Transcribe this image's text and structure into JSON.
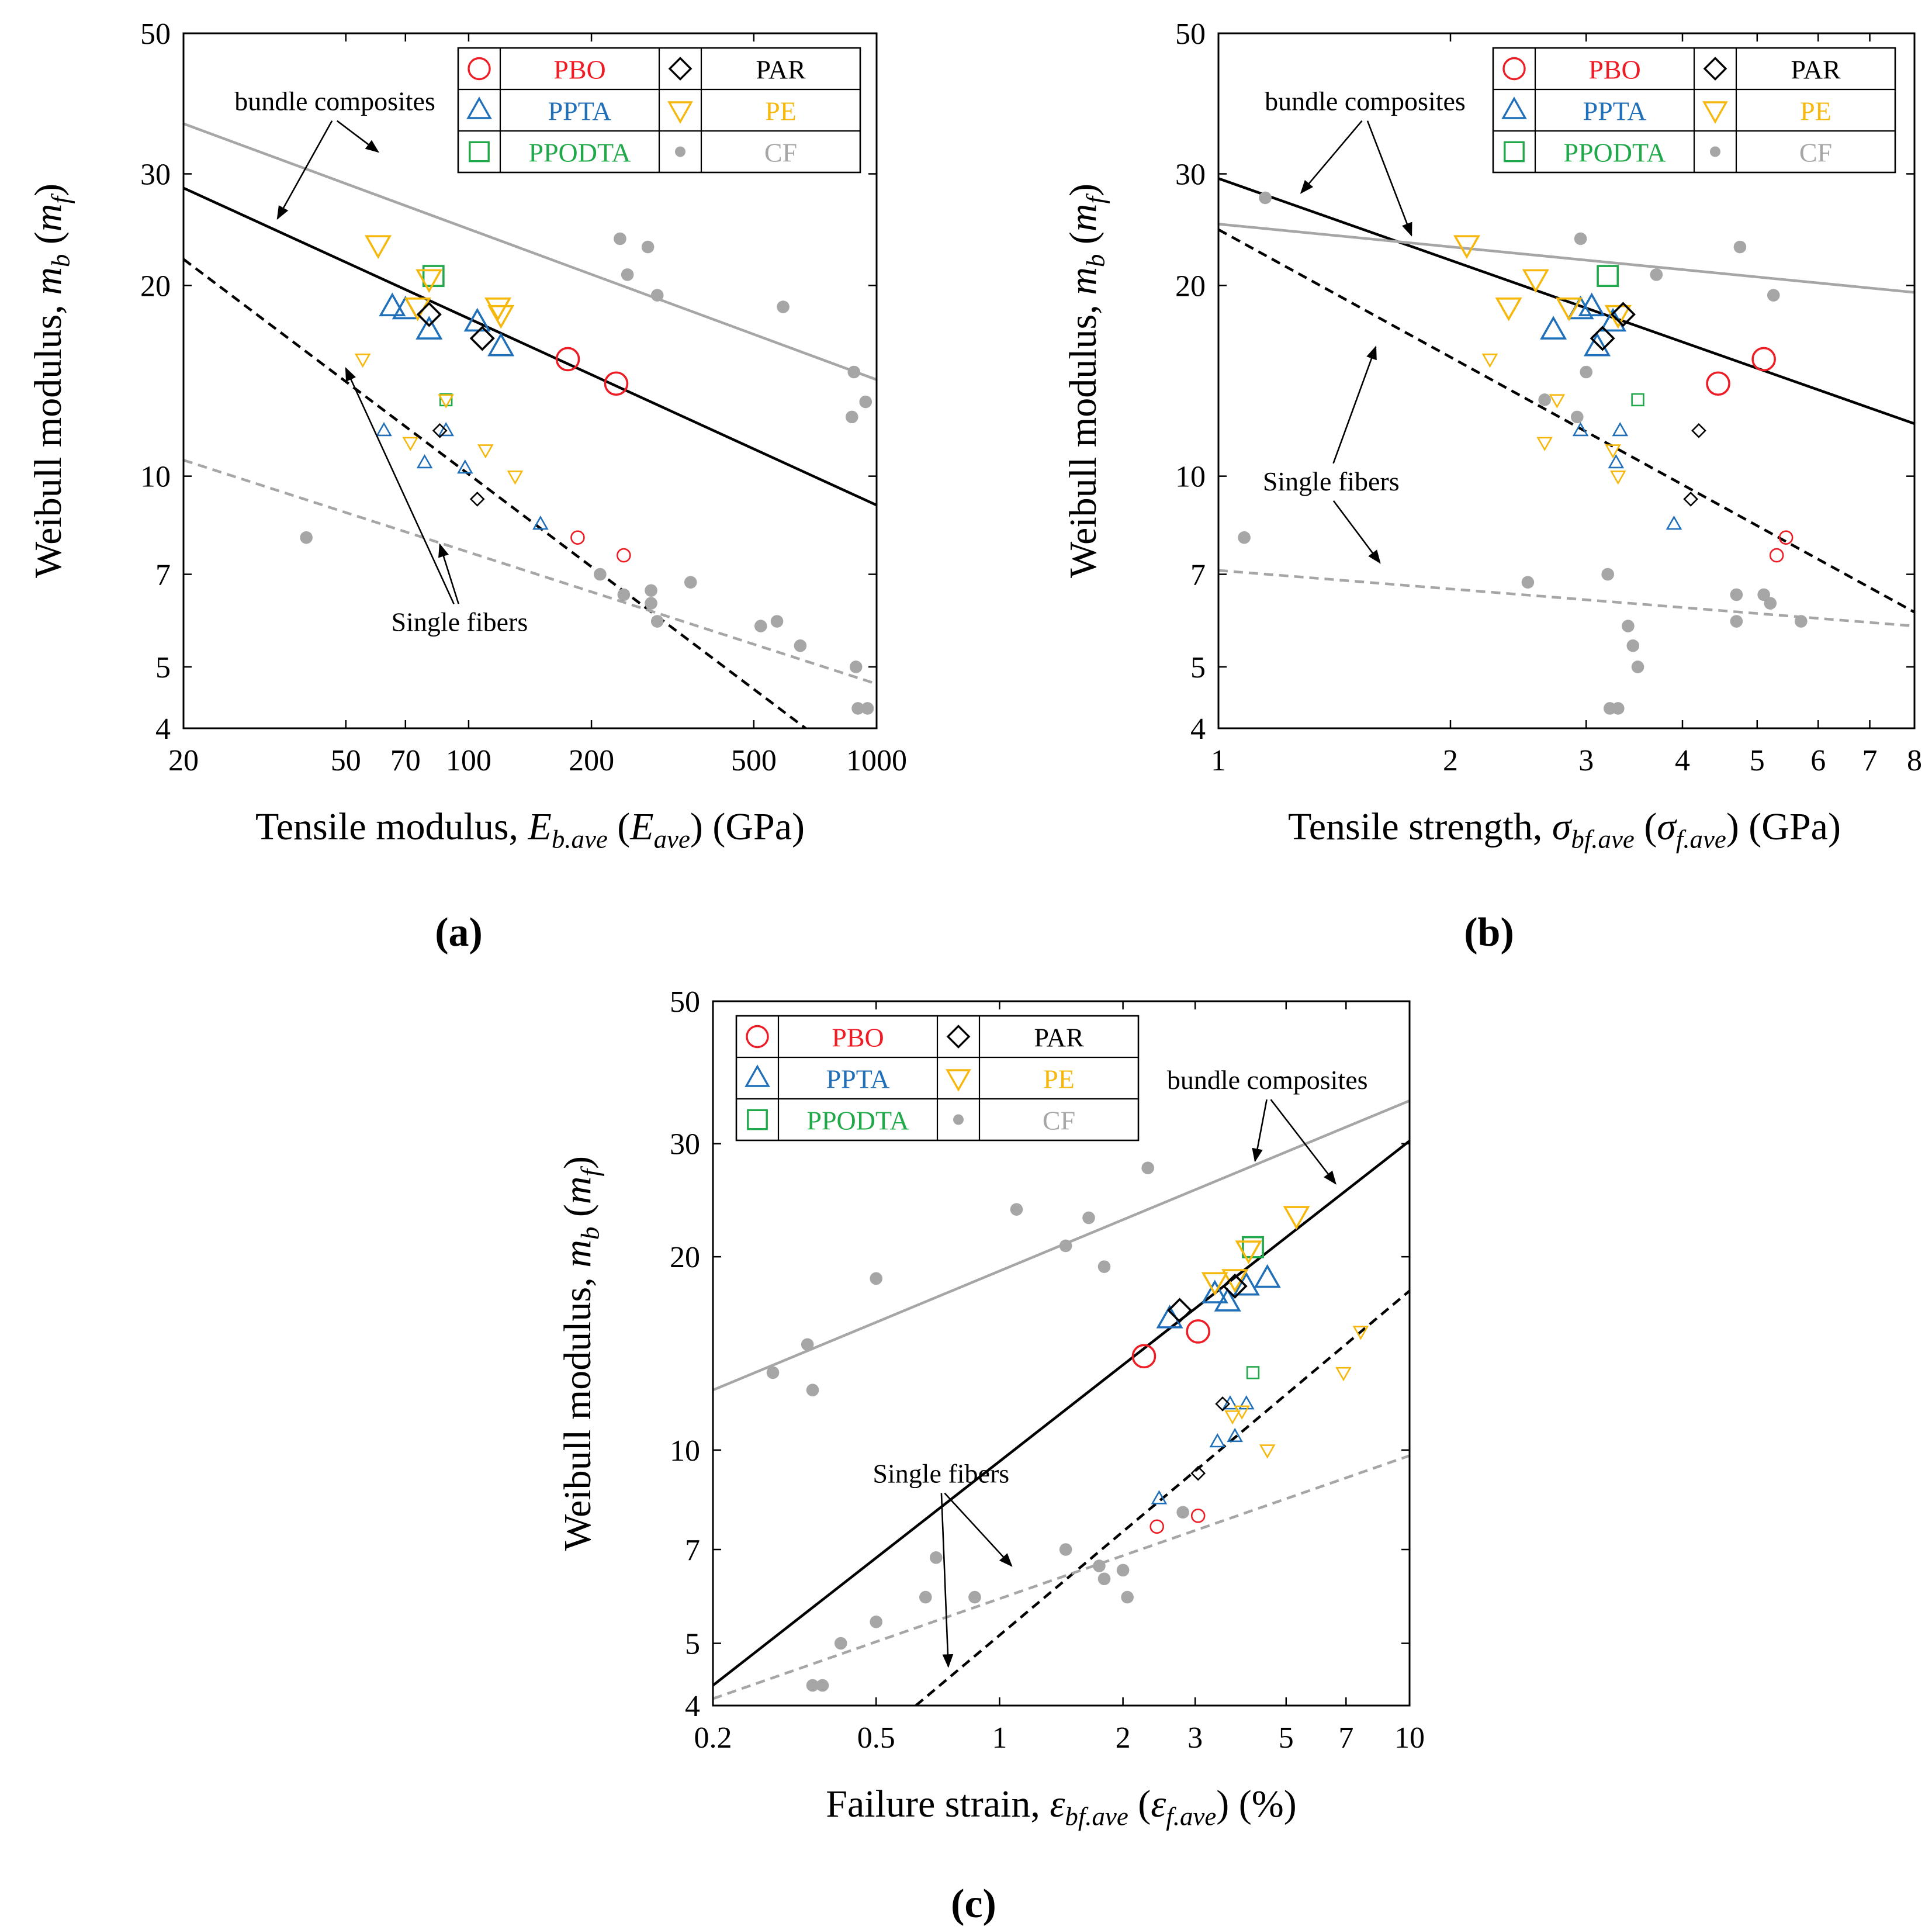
{
  "figure": {
    "panel_labels": [
      "(a)",
      "(b)",
      "(c)"
    ]
  },
  "legend": {
    "entries": [
      {
        "key": "PBO",
        "label": "PBO",
        "color": "#ee1c24",
        "marker": "circle"
      },
      {
        "key": "PAR",
        "label": "PAR",
        "color": "#000000",
        "marker": "diamond"
      },
      {
        "key": "PPTA",
        "label": "PPTA",
        "color": "#1f6fb9",
        "marker": "triangle-up"
      },
      {
        "key": "PE",
        "label": "PE",
        "color": "#f6b80c",
        "marker": "triangle-down"
      },
      {
        "key": "PPODTA",
        "label": "PPODTA",
        "color": "#21a84a",
        "marker": "square"
      },
      {
        "key": "CF",
        "label": "CF",
        "color": "#a6a6a6",
        "marker": "dot"
      }
    ]
  },
  "line_styles": {
    "bundle_fiber": "#000000",
    "bundle_cf": "#a6a6a6",
    "single_fiber": "#000000",
    "single_cf": "#a6a6a6"
  },
  "chart_data": [
    {
      "type": "scatter",
      "panel": "(a)",
      "xscale": "log",
      "yscale": "log",
      "xlim": [
        20,
        1000
      ],
      "ylim": [
        4,
        50
      ],
      "xticks": [
        20,
        50,
        70,
        100,
        200,
        500,
        1000
      ],
      "yticks": [
        4,
        5,
        7,
        10,
        20,
        30,
        50
      ],
      "xlabel": "Tensile modulus, E_b.ave (E_ave) (GPa)",
      "xlabel_parts": {
        "pre": "Tensile modulus, ",
        "v1": "E",
        "s1": "b.ave",
        "mid": " (",
        "v2": "E",
        "s2": "ave",
        "post": ") (GPa)"
      },
      "ylabel_parts": {
        "pre": "Weibull modulus, ",
        "v1": "m",
        "s1": "b",
        "mid": " (",
        "v2": "m",
        "s2": "f",
        "post": ")"
      },
      "bundle_points": {
        "PBO": [
          [
            175,
            15.3
          ],
          [
            230,
            14.0
          ]
        ],
        "PPTA": [
          [
            65,
            18.5
          ],
          [
            70,
            18.3
          ],
          [
            80,
            17.0
          ],
          [
            105,
            17.5
          ],
          [
            120,
            16.0
          ]
        ],
        "PPODTA": [
          [
            82,
            20.7
          ]
        ],
        "PE": [
          [
            60,
            23.2
          ],
          [
            75,
            18.5
          ],
          [
            80,
            20.5
          ],
          [
            118,
            18.5
          ],
          [
            120,
            18.0
          ]
        ],
        "PAR": [
          [
            80,
            18.0
          ],
          [
            108,
            16.5
          ]
        ]
      },
      "single_points": {
        "PBO": [
          [
            185,
            8.0
          ],
          [
            240,
            7.5
          ]
        ],
        "PPTA": [
          [
            62,
            11.8
          ],
          [
            78,
            10.5
          ],
          [
            88,
            11.8
          ],
          [
            98,
            10.3
          ],
          [
            150,
            8.4
          ]
        ],
        "PPODTA": [
          [
            88,
            13.2
          ]
        ],
        "PE": [
          [
            55,
            15.3
          ],
          [
            72,
            11.3
          ],
          [
            88,
            13.2
          ],
          [
            110,
            11.0
          ],
          [
            130,
            10.0
          ]
        ],
        "PAR": [
          [
            85,
            11.8
          ],
          [
            105,
            9.2
          ]
        ]
      },
      "cf_bundle_points": [
        [
          235,
          23.7
        ],
        [
          245,
          20.8
        ],
        [
          275,
          23.0
        ],
        [
          290,
          19.3
        ],
        [
          590,
          18.5
        ],
        [
          880,
          14.6
        ],
        [
          940,
          13.1
        ],
        [
          870,
          12.4
        ]
      ],
      "cf_single_points": [
        [
          40,
          8.0
        ],
        [
          210,
          7.0
        ],
        [
          240,
          6.5
        ],
        [
          280,
          6.6
        ],
        [
          280,
          6.3
        ],
        [
          290,
          5.9
        ],
        [
          350,
          6.8
        ],
        [
          520,
          5.8
        ],
        [
          570,
          5.9
        ],
        [
          650,
          5.4
        ],
        [
          890,
          5.0
        ],
        [
          900,
          4.3
        ],
        [
          950,
          4.3
        ]
      ],
      "fit_lines": [
        {
          "name": "bundle composites (fibers)",
          "style": "bundle_fiber",
          "dash": false,
          "points": [
            [
              20,
              28.5
            ],
            [
              1000,
              9.0
            ]
          ]
        },
        {
          "name": "bundle composites (CF)",
          "style": "bundle_cf",
          "dash": false,
          "points": [
            [
              20,
              36.0
            ],
            [
              1000,
              14.2
            ]
          ]
        },
        {
          "name": "single fibers (fibers)",
          "style": "single_fiber",
          "dash": true,
          "points": [
            [
              20,
              22.0
            ],
            [
              670,
              4.0
            ]
          ]
        },
        {
          "name": "single fibers (CF)",
          "style": "single_cf",
          "dash": true,
          "points": [
            [
              20,
              10.6
            ],
            [
              1000,
              4.7
            ]
          ]
        }
      ],
      "annotations": [
        {
          "text": "bundle composites",
          "pos": [
            47,
            37.8
          ],
          "arrows": [
            [
              34,
              25.5
            ],
            [
              60,
              32.5
            ]
          ]
        },
        {
          "text": "Single fibers",
          "pos": [
            95,
            5.7
          ],
          "arrows": [
            [
              50,
              14.8
            ],
            [
              85,
              7.8
            ]
          ]
        }
      ]
    },
    {
      "type": "scatter",
      "panel": "(b)",
      "xscale": "log",
      "yscale": "log",
      "xlim": [
        1,
        8
      ],
      "ylim": [
        4,
        50
      ],
      "xticks": [
        1,
        2,
        3,
        4,
        5,
        6,
        7,
        8
      ],
      "yticks": [
        4,
        5,
        7,
        10,
        20,
        30,
        50
      ],
      "xlabel": "Tensile strength, σ_bf.ave (σ_f.ave) (GPa)",
      "xlabel_parts": {
        "pre": "Tensile strength, ",
        "v1": "σ",
        "s1": "bf.ave",
        "mid": " (",
        "v2": "σ",
        "s2": "f.ave",
        "post": ") (GPa)"
      },
      "ylabel_parts": {
        "pre": "Weibull modulus, ",
        "v1": "m",
        "s1": "b",
        "mid": " (",
        "v2": "m",
        "s2": "f",
        "post": ")"
      },
      "bundle_points": {
        "PBO": [
          [
            4.45,
            14.0
          ],
          [
            5.1,
            15.3
          ]
        ],
        "PPTA": [
          [
            2.72,
            17.0
          ],
          [
            2.95,
            18.3
          ],
          [
            3.05,
            18.5
          ],
          [
            3.1,
            16.0
          ],
          [
            3.25,
            17.5
          ]
        ],
        "PPODTA": [
          [
            3.2,
            20.7
          ]
        ],
        "PE": [
          [
            2.1,
            23.2
          ],
          [
            2.38,
            18.5
          ],
          [
            2.58,
            20.5
          ],
          [
            2.85,
            18.5
          ],
          [
            3.3,
            18.0
          ]
        ],
        "PAR": [
          [
            3.15,
            16.5
          ],
          [
            3.35,
            18.0
          ]
        ]
      },
      "single_points": {
        "PBO": [
          [
            5.3,
            7.5
          ],
          [
            5.45,
            8.0
          ]
        ],
        "PPTA": [
          [
            2.95,
            11.8
          ],
          [
            3.28,
            10.5
          ],
          [
            3.32,
            11.8
          ],
          [
            3.9,
            8.4
          ]
        ],
        "PPODTA": [
          [
            3.5,
            13.2
          ]
        ],
        "PE": [
          [
            2.25,
            15.3
          ],
          [
            2.65,
            11.3
          ],
          [
            2.75,
            13.2
          ],
          [
            3.25,
            11.0
          ],
          [
            3.3,
            10.0
          ]
        ],
        "PAR": [
          [
            4.2,
            11.8
          ],
          [
            4.1,
            9.2
          ]
        ]
      },
      "cf_bundle_points": [
        [
          1.15,
          27.5
        ],
        [
          2.95,
          23.7
        ],
        [
          3.7,
          20.8
        ],
        [
          4.75,
          23.0
        ],
        [
          5.25,
          19.3
        ]
      ],
      "cf_single_points": [
        [
          1.08,
          8.0
        ],
        [
          2.52,
          6.8
        ],
        [
          2.65,
          13.2
        ],
        [
          2.92,
          12.4
        ],
        [
          3.0,
          14.6
        ],
        [
          3.2,
          7.0
        ],
        [
          3.22,
          4.3
        ],
        [
          3.3,
          4.3
        ],
        [
          3.4,
          5.8
        ],
        [
          3.45,
          5.4
        ],
        [
          3.5,
          5.0
        ],
        [
          4.7,
          6.5
        ],
        [
          4.7,
          5.9
        ],
        [
          5.1,
          6.5
        ],
        [
          5.2,
          6.3
        ],
        [
          5.7,
          5.9
        ]
      ],
      "fit_lines": [
        {
          "name": "bundle composites (fibers)",
          "style": "bundle_fiber",
          "dash": false,
          "points": [
            [
              1,
              29.5
            ],
            [
              8,
              12.1
            ]
          ]
        },
        {
          "name": "bundle composites (CF)",
          "style": "bundle_cf",
          "dash": false,
          "points": [
            [
              1,
              25.0
            ],
            [
              8,
              19.5
            ]
          ]
        },
        {
          "name": "single fibers (fibers)",
          "style": "single_fiber",
          "dash": true,
          "points": [
            [
              1,
              24.5
            ],
            [
              8,
              6.1
            ]
          ]
        },
        {
          "name": "single fibers (CF)",
          "style": "single_cf",
          "dash": true,
          "points": [
            [
              1,
              7.1
            ],
            [
              8,
              5.8
            ]
          ]
        }
      ],
      "annotations": [
        {
          "text": "bundle composites",
          "pos": [
            1.55,
            37.8
          ],
          "arrows": [
            [
              1.28,
              28.0
            ],
            [
              1.78,
              24.0
            ]
          ]
        },
        {
          "text": "Single fibers",
          "pos": [
            1.4,
            9.5
          ],
          "arrows": [
            [
              1.6,
              16.0
            ],
            [
              1.62,
              7.3
            ]
          ]
        }
      ]
    },
    {
      "type": "scatter",
      "panel": "(c)",
      "xscale": "log",
      "yscale": "log",
      "xlim": [
        0.2,
        10
      ],
      "ylim": [
        4,
        50
      ],
      "xticks": [
        0.2,
        0.5,
        1,
        2,
        3,
        5,
        7,
        10
      ],
      "yticks": [
        4,
        5,
        7,
        10,
        20,
        30,
        50
      ],
      "xlabel": "Failure strain, ε_bf.ave (ε_f.ave) (%)",
      "xlabel_parts": {
        "pre": "Failure strain, ",
        "v1": "ε",
        "s1": "bf.ave",
        "mid": " (",
        "v2": "ε",
        "s2": "f.ave",
        "post": ") (%)"
      },
      "ylabel_parts": {
        "pre": "Weibull modulus, ",
        "v1": "m",
        "s1": "b",
        "mid": " (",
        "v2": "m",
        "s2": "f",
        "post": ")"
      },
      "bundle_points": {
        "PBO": [
          [
            2.25,
            14.0
          ],
          [
            3.05,
            15.3
          ]
        ],
        "PPTA": [
          [
            2.6,
            16.0
          ],
          [
            3.35,
            17.5
          ],
          [
            3.6,
            17.0
          ],
          [
            4.0,
            18.0
          ],
          [
            4.5,
            18.5
          ]
        ],
        "PPODTA": [
          [
            4.15,
            20.7
          ]
        ],
        "PE": [
          [
            3.35,
            18.3
          ],
          [
            3.75,
            18.5
          ],
          [
            4.05,
            20.5
          ],
          [
            5.3,
            23.2
          ]
        ],
        "PAR": [
          [
            2.75,
            16.5
          ],
          [
            3.75,
            18.0
          ]
        ]
      },
      "single_points": {
        "PBO": [
          [
            2.42,
            7.6
          ],
          [
            3.05,
            7.9
          ]
        ],
        "PPTA": [
          [
            2.45,
            8.4
          ],
          [
            3.4,
            10.3
          ],
          [
            3.65,
            11.8
          ],
          [
            3.75,
            10.5
          ],
          [
            4.0,
            11.8
          ]
        ],
        "PPODTA": [
          [
            4.15,
            13.2
          ]
        ],
        "PE": [
          [
            3.7,
            11.3
          ],
          [
            3.9,
            11.5
          ],
          [
            4.5,
            10.0
          ],
          [
            6.9,
            13.2
          ],
          [
            7.6,
            15.3
          ]
        ],
        "PAR": [
          [
            3.5,
            11.8
          ],
          [
            3.05,
            9.2
          ]
        ]
      },
      "cf_bundle_points": [
        [
          0.28,
          13.2
        ],
        [
          0.34,
          14.6
        ],
        [
          0.35,
          12.4
        ],
        [
          0.5,
          18.5
        ],
        [
          1.1,
          23.7
        ],
        [
          1.45,
          20.8
        ],
        [
          1.65,
          23.0
        ],
        [
          1.8,
          19.3
        ],
        [
          2.3,
          27.5
        ]
      ],
      "cf_single_points": [
        [
          0.35,
          4.3
        ],
        [
          0.37,
          4.3
        ],
        [
          0.41,
          5.0
        ],
        [
          0.5,
          5.4
        ],
        [
          0.66,
          5.9
        ],
        [
          0.7,
          6.8
        ],
        [
          0.87,
          5.9
        ],
        [
          1.45,
          7.0
        ],
        [
          1.75,
          6.6
        ],
        [
          1.8,
          6.3
        ],
        [
          2.0,
          6.5
        ],
        [
          2.05,
          5.9
        ],
        [
          2.8,
          8.0
        ]
      ],
      "fit_lines": [
        {
          "name": "bundle composites (fibers)",
          "style": "bundle_fiber",
          "dash": false,
          "points": [
            [
              0.2,
              4.3
            ],
            [
              10,
              30.3
            ]
          ]
        },
        {
          "name": "bundle composites (CF)",
          "style": "bundle_cf",
          "dash": false,
          "points": [
            [
              0.2,
              12.4
            ],
            [
              10,
              35.0
            ]
          ]
        },
        {
          "name": "single fibers (fibers)",
          "style": "single_fiber",
          "dash": true,
          "points": [
            [
              0.625,
              4.0
            ],
            [
              10,
              17.7
            ]
          ]
        },
        {
          "name": "single fibers (CF)",
          "style": "single_cf",
          "dash": true,
          "points": [
            [
              0.2,
              4.1
            ],
            [
              10,
              9.8
            ]
          ]
        }
      ],
      "annotations": [
        {
          "text": "bundle composites",
          "pos": [
            4.5,
            36.5
          ],
          "arrows": [
            [
              4.2,
              28.2
            ],
            [
              6.6,
              26.0
            ]
          ]
        },
        {
          "text": "Single fibers",
          "pos": [
            0.72,
            8.9
          ],
          "arrows": [
            [
              1.07,
              6.6
            ],
            [
              0.75,
              4.6
            ]
          ]
        }
      ]
    }
  ]
}
